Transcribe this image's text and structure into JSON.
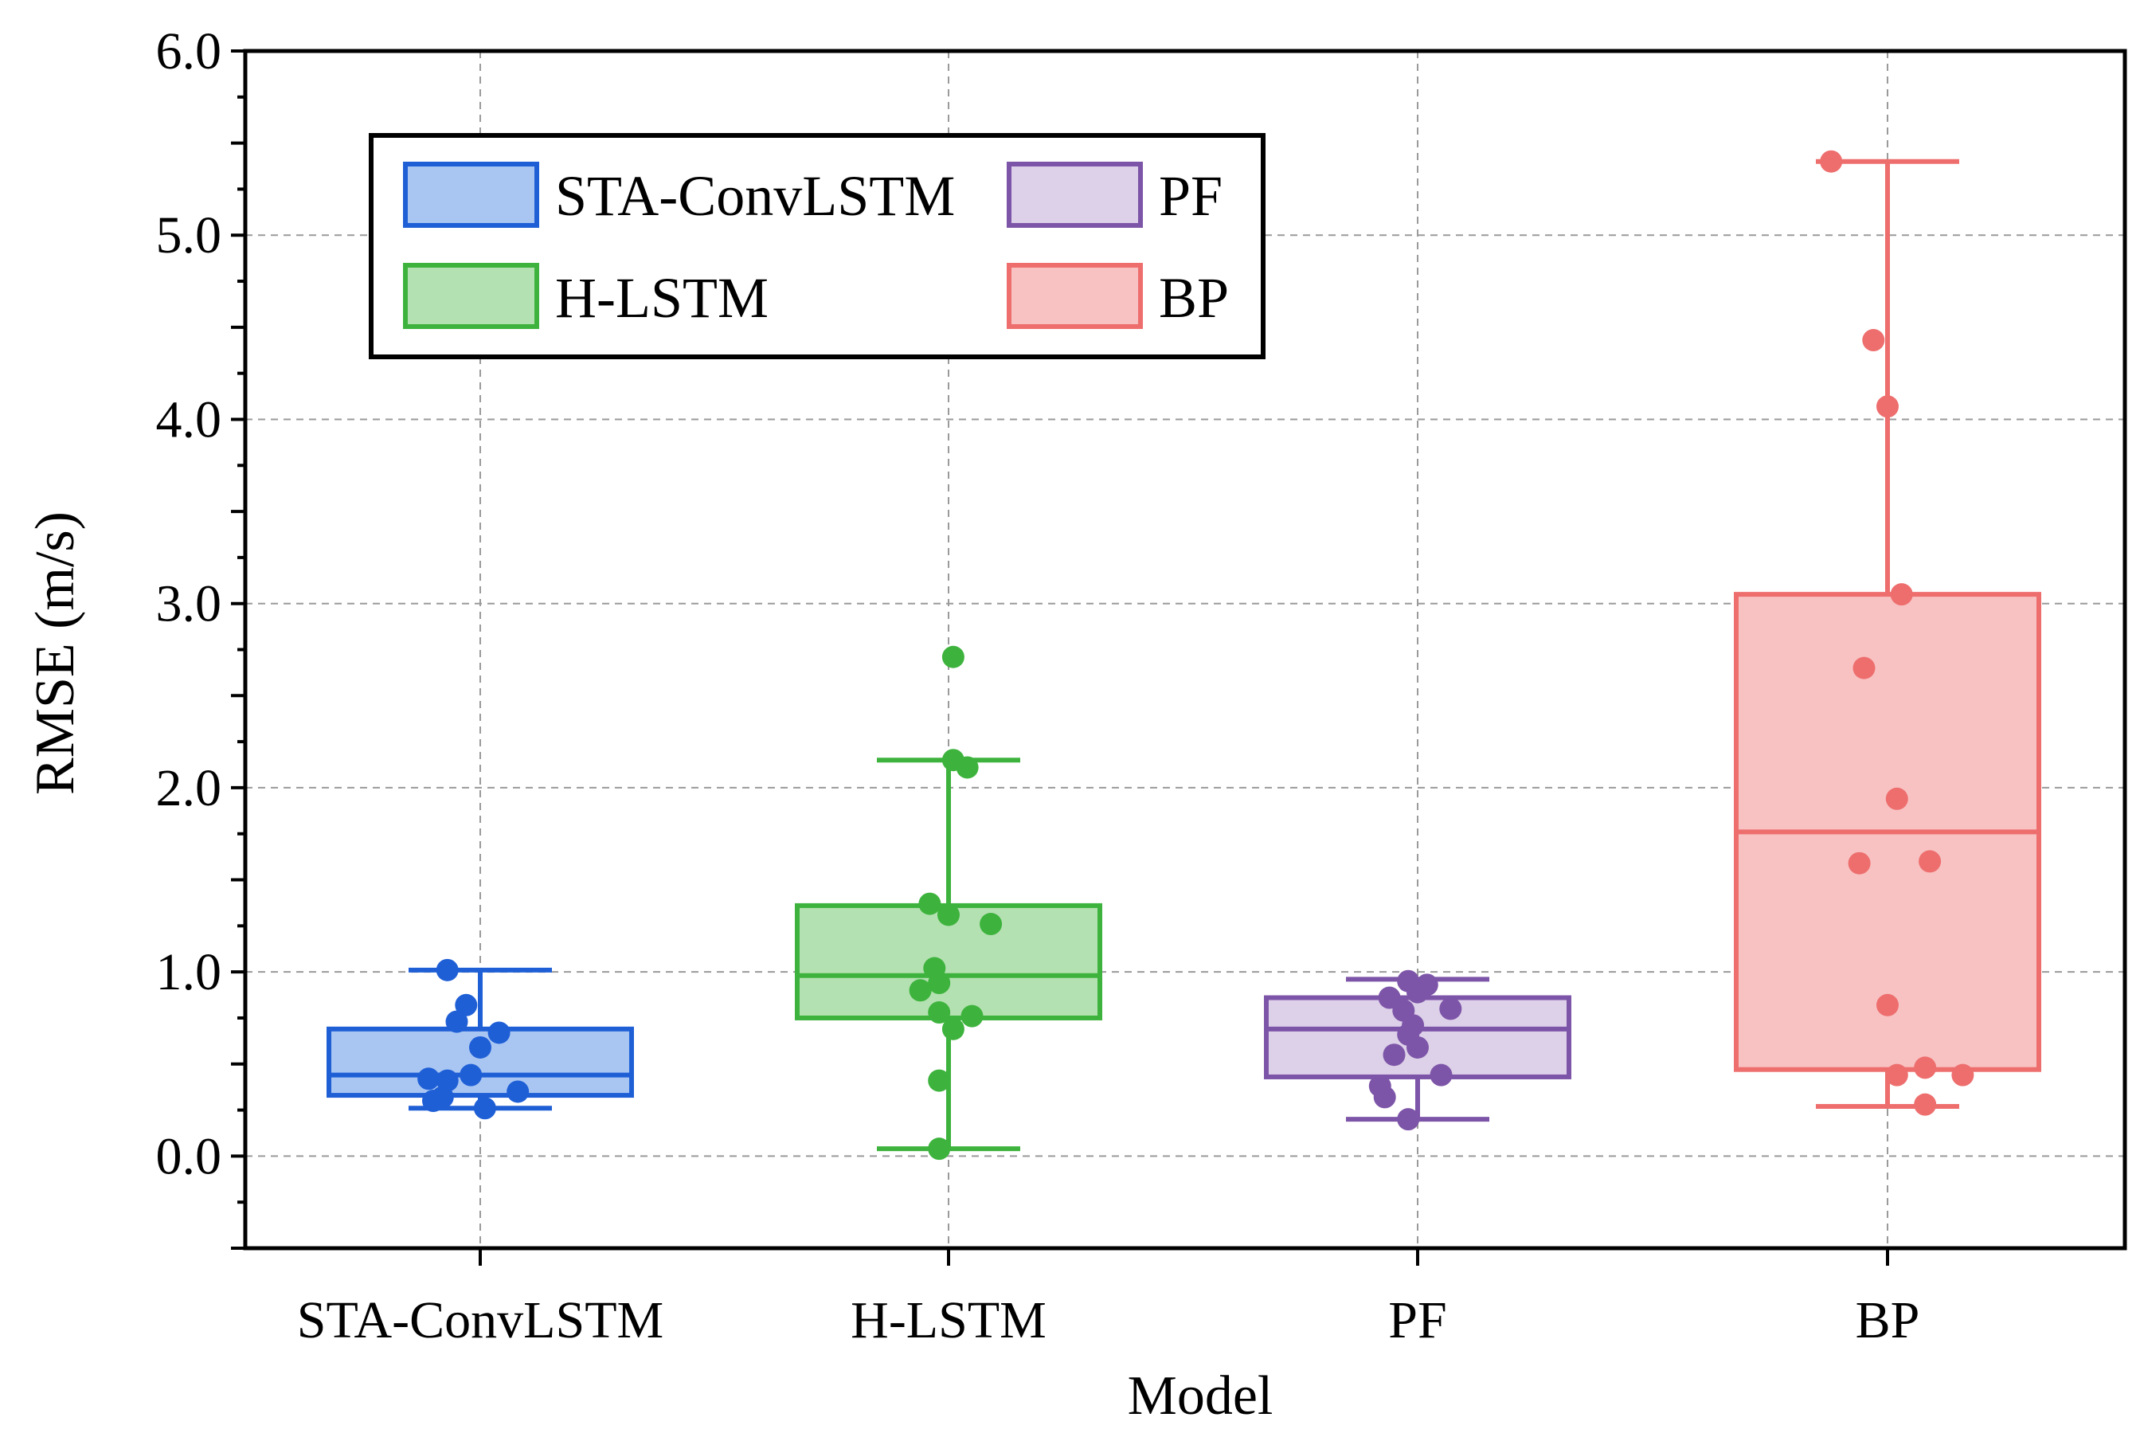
{
  "chart_data": {
    "type": "box",
    "xlabel": "Model",
    "ylabel": "RMSE (m/s)",
    "ylim": [
      -0.5,
      6.0
    ],
    "yticks": [
      0.0,
      1.0,
      2.0,
      3.0,
      4.0,
      5.0,
      6.0
    ],
    "ytick_labels": [
      "0.0",
      "1.0",
      "2.0",
      "3.0",
      "4.0",
      "5.0",
      "6.0"
    ],
    "grid": true,
    "legend_position": "top-left",
    "categories": [
      "STA-ConvLSTM",
      "H-LSTM",
      "PF",
      "BP"
    ],
    "series": [
      {
        "name": "STA-ConvLSTM",
        "color": "#1f5fd6",
        "fill": "#a9c6f3",
        "whisker_low": 0.26,
        "q1": 0.33,
        "median": 0.44,
        "q3": 0.69,
        "whisker_high": 1.01,
        "points": [
          {
            "jitter": -0.07,
            "value": 1.01
          },
          {
            "jitter": -0.03,
            "value": 0.82
          },
          {
            "jitter": -0.05,
            "value": 0.73
          },
          {
            "jitter": 0.04,
            "value": 0.67
          },
          {
            "jitter": 0.0,
            "value": 0.59
          },
          {
            "jitter": -0.11,
            "value": 0.42
          },
          {
            "jitter": -0.07,
            "value": 0.41
          },
          {
            "jitter": -0.02,
            "value": 0.44
          },
          {
            "jitter": 0.08,
            "value": 0.35
          },
          {
            "jitter": -0.08,
            "value": 0.32
          },
          {
            "jitter": -0.1,
            "value": 0.3
          },
          {
            "jitter": 0.01,
            "value": 0.26
          }
        ]
      },
      {
        "name": "H-LSTM",
        "color": "#3db33d",
        "fill": "#b4e1b1",
        "whisker_low": 0.04,
        "q1": 0.75,
        "median": 0.98,
        "q3": 1.36,
        "whisker_high": 2.15,
        "points": [
          {
            "jitter": 0.01,
            "value": 2.71
          },
          {
            "jitter": 0.01,
            "value": 2.15
          },
          {
            "jitter": 0.04,
            "value": 2.11
          },
          {
            "jitter": -0.04,
            "value": 1.37
          },
          {
            "jitter": 0.0,
            "value": 1.31
          },
          {
            "jitter": 0.09,
            "value": 1.26
          },
          {
            "jitter": -0.03,
            "value": 1.02
          },
          {
            "jitter": -0.02,
            "value": 0.94
          },
          {
            "jitter": -0.06,
            "value": 0.9
          },
          {
            "jitter": -0.02,
            "value": 0.78
          },
          {
            "jitter": 0.05,
            "value": 0.76
          },
          {
            "jitter": 0.01,
            "value": 0.69
          },
          {
            "jitter": -0.02,
            "value": 0.41
          },
          {
            "jitter": -0.02,
            "value": 0.04
          }
        ]
      },
      {
        "name": "PF",
        "color": "#7d55a8",
        "fill": "#ddd0e9",
        "whisker_low": 0.2,
        "q1": 0.43,
        "median": 0.69,
        "q3": 0.86,
        "whisker_high": 0.96,
        "points": [
          {
            "jitter": -0.02,
            "value": 0.95
          },
          {
            "jitter": 0.02,
            "value": 0.93
          },
          {
            "jitter": 0.0,
            "value": 0.89
          },
          {
            "jitter": -0.06,
            "value": 0.86
          },
          {
            "jitter": 0.07,
            "value": 0.8
          },
          {
            "jitter": -0.03,
            "value": 0.79
          },
          {
            "jitter": -0.01,
            "value": 0.71
          },
          {
            "jitter": -0.02,
            "value": 0.66
          },
          {
            "jitter": 0.0,
            "value": 0.59
          },
          {
            "jitter": -0.05,
            "value": 0.55
          },
          {
            "jitter": 0.05,
            "value": 0.44
          },
          {
            "jitter": -0.08,
            "value": 0.38
          },
          {
            "jitter": -0.07,
            "value": 0.32
          },
          {
            "jitter": -0.02,
            "value": 0.2
          }
        ]
      },
      {
        "name": "BP",
        "color": "#ee6e6e",
        "fill": "#f8c2c2",
        "whisker_low": 0.27,
        "q1": 0.47,
        "median": 1.76,
        "q3": 3.05,
        "whisker_high": 5.4,
        "points": [
          {
            "jitter": -0.12,
            "value": 5.4
          },
          {
            "jitter": -0.03,
            "value": 4.43
          },
          {
            "jitter": 0.0,
            "value": 4.07
          },
          {
            "jitter": 0.03,
            "value": 3.05
          },
          {
            "jitter": -0.05,
            "value": 2.65
          },
          {
            "jitter": 0.02,
            "value": 1.94
          },
          {
            "jitter": 0.09,
            "value": 1.6
          },
          {
            "jitter": -0.06,
            "value": 1.59
          },
          {
            "jitter": 0.0,
            "value": 0.82
          },
          {
            "jitter": 0.08,
            "value": 0.48
          },
          {
            "jitter": 0.02,
            "value": 0.44
          },
          {
            "jitter": 0.16,
            "value": 0.44
          },
          {
            "jitter": 0.08,
            "value": 0.28
          }
        ]
      }
    ]
  }
}
